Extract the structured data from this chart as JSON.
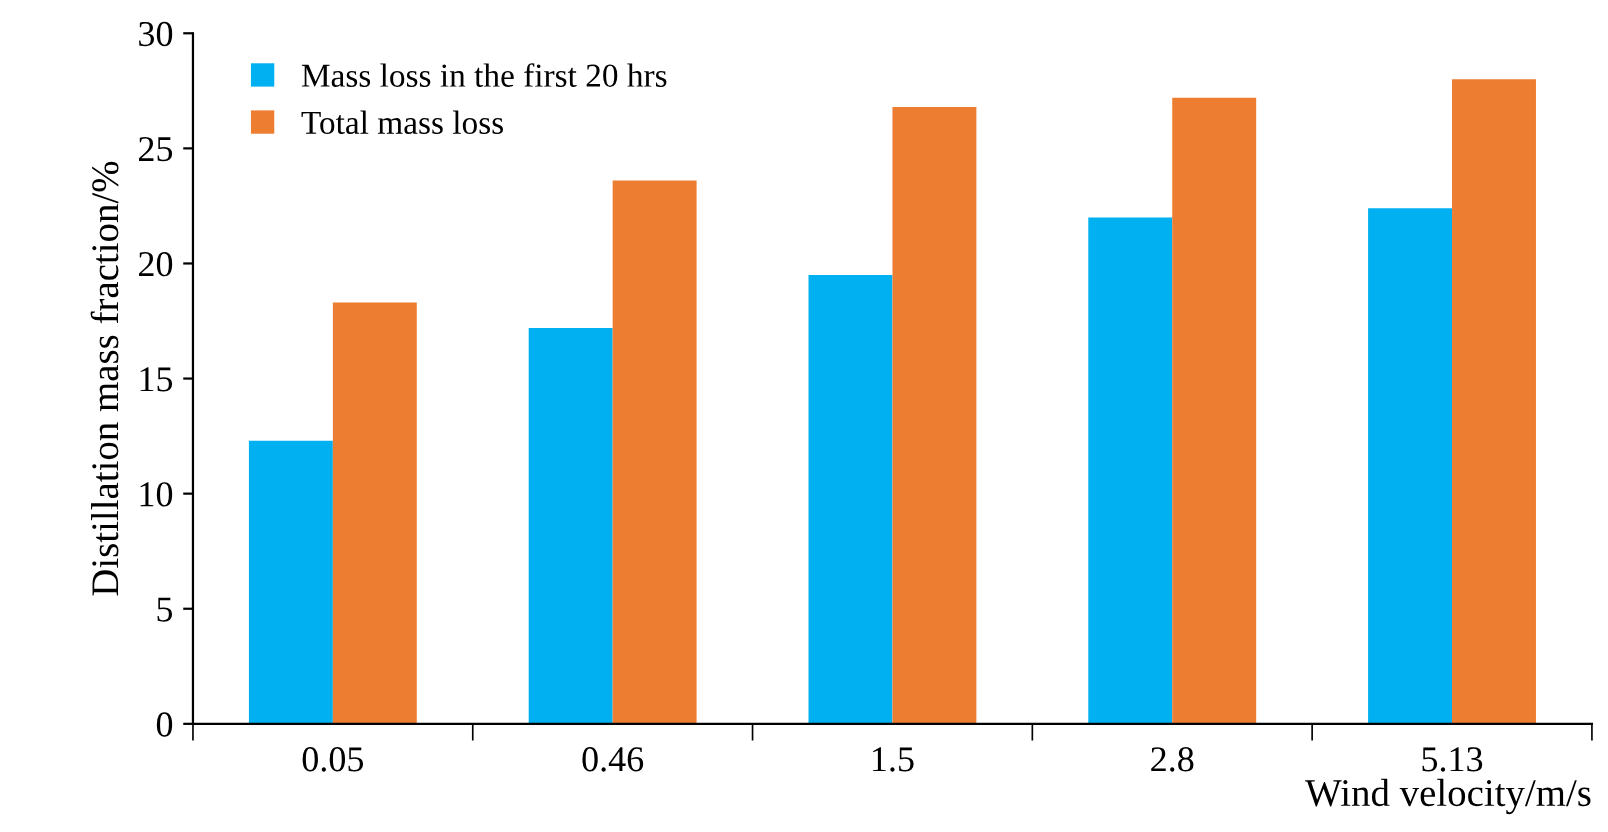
{
  "chart_data": {
    "type": "bar",
    "xlabel": "Wind velocity/m/s",
    "ylabel": "Distillation mass fraction/%",
    "categories": [
      "0.05",
      "0.46",
      "1.5",
      "2.8",
      "5.13"
    ],
    "series": [
      {
        "name": "Mass loss in the first 20 hrs",
        "color": "#00b0f0",
        "values": [
          12.3,
          17.2,
          19.5,
          22.0,
          22.4
        ]
      },
      {
        "name": "Total mass loss",
        "color": "#ed7d31",
        "values": [
          18.3,
          23.6,
          26.8,
          27.2,
          28.0
        ]
      }
    ],
    "ylim": [
      0,
      30
    ],
    "yticks": [
      0,
      5,
      10,
      15,
      20,
      25,
      30
    ],
    "grid": false,
    "legend": "top left"
  }
}
